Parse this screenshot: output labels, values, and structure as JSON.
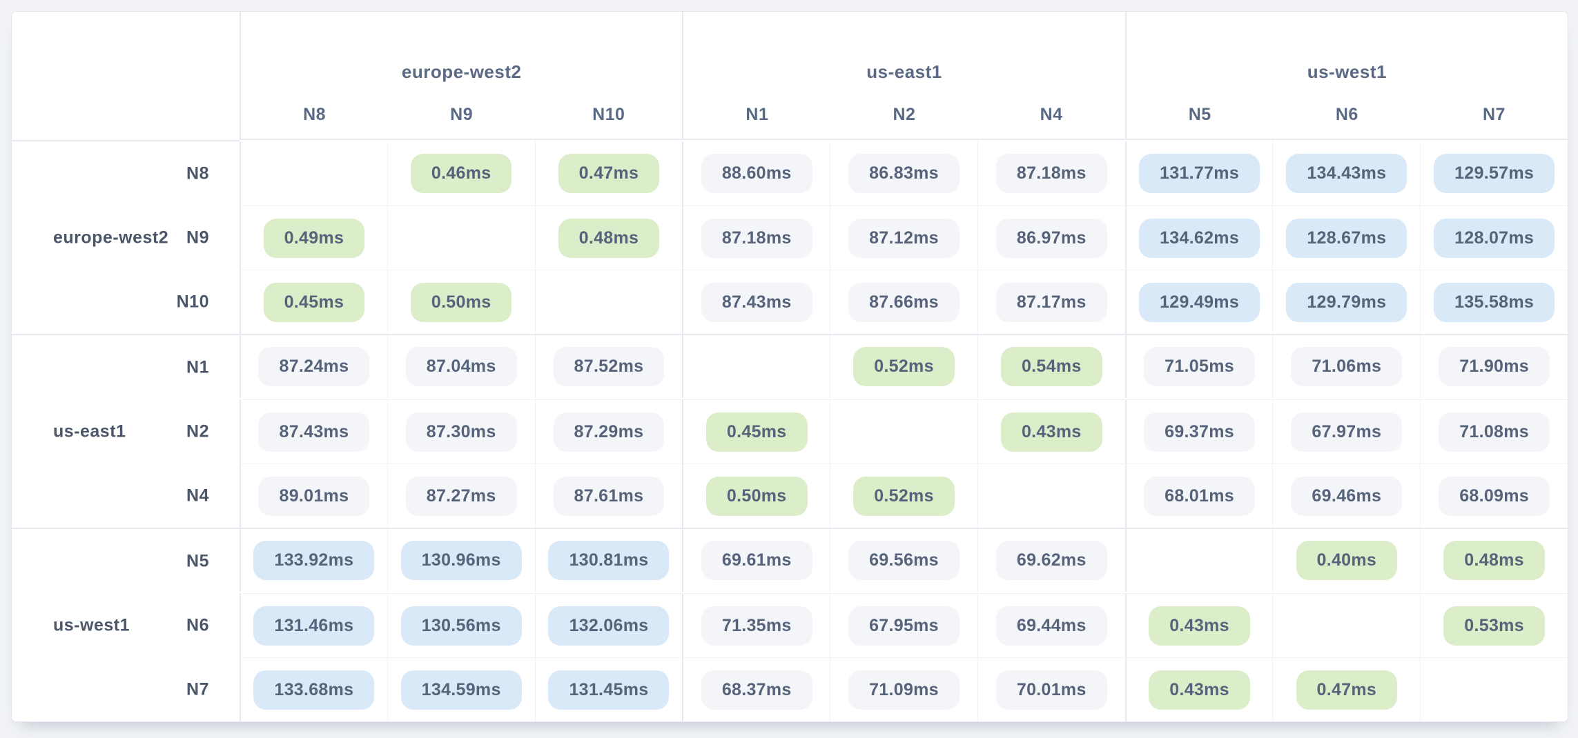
{
  "page": {
    "background_color": "#f1f3f7",
    "card_background": "#ffffff"
  },
  "chart_data": {
    "type": "heatmap",
    "title": "",
    "unit": "ms",
    "column_groups": [
      {
        "region": "europe-west2",
        "nodes": [
          "N8",
          "N9",
          "N10"
        ]
      },
      {
        "region": "us-east1",
        "nodes": [
          "N1",
          "N2",
          "N4"
        ]
      },
      {
        "region": "us-west1",
        "nodes": [
          "N5",
          "N6",
          "N7"
        ]
      }
    ],
    "row_groups": [
      {
        "region": "europe-west2",
        "nodes": [
          "N8",
          "N9",
          "N10"
        ]
      },
      {
        "region": "us-east1",
        "nodes": [
          "N1",
          "N2",
          "N4"
        ]
      },
      {
        "region": "us-west1",
        "nodes": [
          "N5",
          "N6",
          "N7"
        ]
      }
    ],
    "rows": [
      "N8",
      "N9",
      "N10",
      "N1",
      "N2",
      "N4",
      "N5",
      "N6",
      "N7"
    ],
    "columns": [
      "N8",
      "N9",
      "N10",
      "N1",
      "N2",
      "N4",
      "N5",
      "N6",
      "N7"
    ],
    "values_ms": [
      [
        null,
        0.46,
        0.47,
        88.6,
        86.83,
        87.18,
        131.77,
        134.43,
        129.57
      ],
      [
        0.49,
        null,
        0.48,
        87.18,
        87.12,
        86.97,
        134.62,
        128.67,
        128.07
      ],
      [
        0.45,
        0.5,
        null,
        87.43,
        87.66,
        87.17,
        129.49,
        129.79,
        135.58
      ],
      [
        87.24,
        87.04,
        87.52,
        null,
        0.52,
        0.54,
        71.05,
        71.06,
        71.9
      ],
      [
        87.43,
        87.3,
        87.29,
        0.45,
        null,
        0.43,
        69.37,
        67.97,
        71.08
      ],
      [
        89.01,
        87.27,
        87.61,
        0.5,
        0.52,
        null,
        68.01,
        69.46,
        68.09
      ],
      [
        133.92,
        130.96,
        130.81,
        69.61,
        69.56,
        69.62,
        null,
        0.4,
        0.48
      ],
      [
        131.46,
        130.56,
        132.06,
        71.35,
        67.95,
        69.44,
        0.43,
        null,
        0.53
      ],
      [
        133.68,
        134.59,
        131.45,
        68.37,
        71.09,
        70.01,
        0.43,
        0.47,
        null
      ]
    ],
    "color_scale": {
      "low_under_1ms": "#dcedc9",
      "mid_under_100ms": "#f3f5f9",
      "high_over_100ms": "#d9e9f8"
    },
    "layout_hints": {
      "grid": true,
      "diagonal_cells_empty": true,
      "row_label_position": "left",
      "column_group_titles_position": "top"
    }
  }
}
